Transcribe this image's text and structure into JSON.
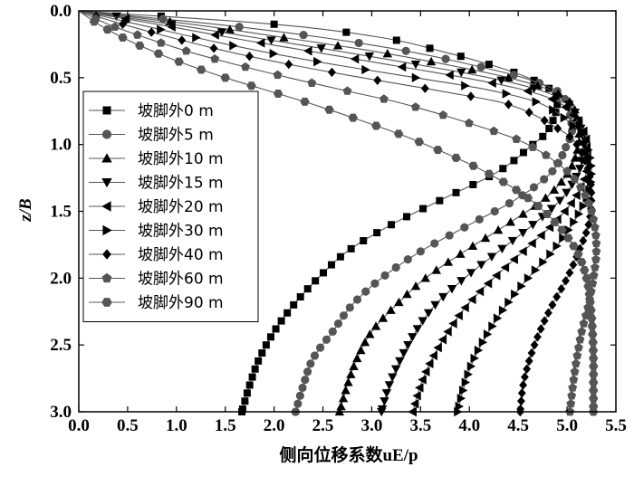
{
  "chart_data": {
    "type": "line",
    "xlabel": "侧向位移系数uE/p",
    "ylabel": "z/B",
    "xlim": [
      0.0,
      5.5
    ],
    "ylim": [
      0.0,
      3.0
    ],
    "y_inverted": true,
    "x_ticks": [
      "0.0",
      "0.5",
      "1.0",
      "1.5",
      "2.0",
      "2.5",
      "3.0",
      "3.5",
      "4.0",
      "4.5",
      "5.0",
      "5.5"
    ],
    "y_ticks": [
      "0.0",
      "0.5",
      "1.0",
      "1.5",
      "2.0",
      "2.5",
      "3.0"
    ],
    "grid": false,
    "legend_position": "left",
    "series": [
      {
        "name": "坡脚外0 m",
        "marker": "square",
        "profile": [
          [
            0.0,
            0.0
          ],
          [
            0.1,
            2.0
          ],
          [
            0.2,
            3.1
          ],
          [
            0.3,
            3.7
          ],
          [
            0.4,
            4.2
          ],
          [
            0.5,
            4.6
          ],
          [
            0.6,
            4.85
          ],
          [
            0.7,
            4.9
          ],
          [
            0.9,
            4.8
          ],
          [
            1.0,
            4.65
          ],
          [
            1.2,
            4.3
          ],
          [
            1.4,
            3.75
          ],
          [
            1.6,
            3.2
          ],
          [
            1.8,
            2.75
          ],
          [
            2.0,
            2.45
          ],
          [
            2.2,
            2.2
          ],
          [
            2.4,
            2.0
          ],
          [
            2.6,
            1.85
          ],
          [
            2.8,
            1.75
          ],
          [
            3.0,
            1.67
          ]
        ]
      },
      {
        "name": "坡脚外5 m",
        "marker": "circle",
        "profile": [
          [
            0.0,
            0.0
          ],
          [
            0.1,
            1.4
          ],
          [
            0.2,
            2.5
          ],
          [
            0.3,
            3.35
          ],
          [
            0.4,
            4.0
          ],
          [
            0.5,
            4.55
          ],
          [
            0.6,
            4.9
          ],
          [
            0.7,
            5.0
          ],
          [
            0.9,
            5.05
          ],
          [
            1.0,
            5.0
          ],
          [
            1.2,
            4.85
          ],
          [
            1.4,
            4.5
          ],
          [
            1.6,
            4.0
          ],
          [
            1.8,
            3.5
          ],
          [
            2.0,
            3.1
          ],
          [
            2.2,
            2.8
          ],
          [
            2.4,
            2.6
          ],
          [
            2.6,
            2.4
          ],
          [
            2.8,
            2.3
          ],
          [
            3.0,
            2.22
          ]
        ]
      },
      {
        "name": "坡脚外10 m",
        "marker": "triangle-up",
        "profile": [
          [
            0.0,
            0.0
          ],
          [
            0.1,
            1.15
          ],
          [
            0.2,
            2.1
          ],
          [
            0.3,
            3.0
          ],
          [
            0.4,
            3.75
          ],
          [
            0.5,
            4.4
          ],
          [
            0.6,
            4.85
          ],
          [
            0.7,
            5.05
          ],
          [
            0.9,
            5.12
          ],
          [
            1.0,
            5.12
          ],
          [
            1.2,
            5.02
          ],
          [
            1.4,
            4.78
          ],
          [
            1.6,
            4.38
          ],
          [
            1.8,
            3.95
          ],
          [
            2.0,
            3.55
          ],
          [
            2.2,
            3.25
          ],
          [
            2.4,
            3.0
          ],
          [
            2.6,
            2.85
          ],
          [
            2.8,
            2.75
          ],
          [
            3.0,
            2.67
          ]
        ]
      },
      {
        "name": "坡脚外15 m",
        "marker": "triangle-down",
        "profile": [
          [
            0.0,
            0.0
          ],
          [
            0.1,
            0.95
          ],
          [
            0.2,
            1.8
          ],
          [
            0.3,
            2.65
          ],
          [
            0.4,
            3.45
          ],
          [
            0.5,
            4.2
          ],
          [
            0.6,
            4.75
          ],
          [
            0.7,
            5.02
          ],
          [
            0.9,
            5.15
          ],
          [
            1.0,
            5.17
          ],
          [
            1.2,
            5.12
          ],
          [
            1.4,
            4.95
          ],
          [
            1.6,
            4.65
          ],
          [
            1.8,
            4.3
          ],
          [
            2.0,
            3.95
          ],
          [
            2.2,
            3.65
          ],
          [
            2.4,
            3.45
          ],
          [
            2.6,
            3.3
          ],
          [
            2.8,
            3.18
          ],
          [
            3.0,
            3.1
          ]
        ]
      },
      {
        "name": "坡脚外20 m",
        "marker": "triangle-left",
        "profile": [
          [
            0.0,
            0.0
          ],
          [
            0.1,
            0.8
          ],
          [
            0.2,
            1.55
          ],
          [
            0.3,
            2.35
          ],
          [
            0.4,
            3.15
          ],
          [
            0.5,
            3.95
          ],
          [
            0.6,
            4.6
          ],
          [
            0.7,
            4.95
          ],
          [
            0.9,
            5.17
          ],
          [
            1.0,
            5.2
          ],
          [
            1.2,
            5.2
          ],
          [
            1.4,
            5.08
          ],
          [
            1.6,
            4.85
          ],
          [
            1.8,
            4.55
          ],
          [
            2.0,
            4.25
          ],
          [
            2.2,
            3.98
          ],
          [
            2.4,
            3.78
          ],
          [
            2.6,
            3.62
          ],
          [
            2.8,
            3.5
          ],
          [
            3.0,
            3.42
          ]
        ]
      },
      {
        "name": "坡脚外30 m",
        "marker": "triangle-right",
        "profile": [
          [
            0.0,
            0.0
          ],
          [
            0.1,
            0.6
          ],
          [
            0.2,
            1.2
          ],
          [
            0.3,
            1.85
          ],
          [
            0.4,
            2.6
          ],
          [
            0.5,
            3.45
          ],
          [
            0.6,
            4.25
          ],
          [
            0.7,
            4.75
          ],
          [
            0.9,
            5.12
          ],
          [
            1.0,
            5.2
          ],
          [
            1.2,
            5.25
          ],
          [
            1.4,
            5.2
          ],
          [
            1.6,
            5.05
          ],
          [
            1.8,
            4.85
          ],
          [
            2.0,
            4.6
          ],
          [
            2.2,
            4.38
          ],
          [
            2.4,
            4.2
          ],
          [
            2.6,
            4.05
          ],
          [
            2.8,
            3.95
          ],
          [
            3.0,
            3.88
          ]
        ]
      },
      {
        "name": "坡脚外40 m",
        "marker": "diamond",
        "profile": [
          [
            0.0,
            0.0
          ],
          [
            0.1,
            0.45
          ],
          [
            0.2,
            0.95
          ],
          [
            0.3,
            1.5
          ],
          [
            0.4,
            2.15
          ],
          [
            0.5,
            2.9
          ],
          [
            0.6,
            3.7
          ],
          [
            0.7,
            4.4
          ],
          [
            0.9,
            4.95
          ],
          [
            1.0,
            5.1
          ],
          [
            1.2,
            5.22
          ],
          [
            1.4,
            5.25
          ],
          [
            1.6,
            5.22
          ],
          [
            1.8,
            5.12
          ],
          [
            2.0,
            5.0
          ],
          [
            2.2,
            4.85
          ],
          [
            2.4,
            4.72
          ],
          [
            2.6,
            4.62
          ],
          [
            2.8,
            4.55
          ],
          [
            3.0,
            4.52
          ]
        ]
      },
      {
        "name": "坡脚外60 m",
        "marker": "pentagon",
        "profile": [
          [
            0.0,
            0.0
          ],
          [
            0.1,
            0.3
          ],
          [
            0.2,
            0.68
          ],
          [
            0.3,
            1.1
          ],
          [
            0.4,
            1.6
          ],
          [
            0.5,
            2.15
          ],
          [
            0.6,
            2.75
          ],
          [
            0.7,
            3.35
          ],
          [
            0.9,
            4.25
          ],
          [
            1.0,
            4.6
          ],
          [
            1.2,
            5.0
          ],
          [
            1.4,
            5.2
          ],
          [
            1.6,
            5.28
          ],
          [
            1.8,
            5.3
          ],
          [
            2.0,
            5.27
          ],
          [
            2.2,
            5.22
          ],
          [
            2.4,
            5.15
          ],
          [
            2.6,
            5.1
          ],
          [
            2.8,
            5.06
          ],
          [
            3.0,
            5.03
          ]
        ]
      },
      {
        "name": "坡脚外90 m",
        "marker": "hexagon",
        "profile": [
          [
            0.0,
            0.0
          ],
          [
            0.1,
            0.2
          ],
          [
            0.2,
            0.45
          ],
          [
            0.3,
            0.75
          ],
          [
            0.4,
            1.1
          ],
          [
            0.5,
            1.5
          ],
          [
            0.6,
            1.95
          ],
          [
            0.7,
            2.4
          ],
          [
            0.9,
            3.2
          ],
          [
            1.0,
            3.55
          ],
          [
            1.2,
            4.15
          ],
          [
            1.4,
            4.6
          ],
          [
            1.6,
            4.9
          ],
          [
            1.8,
            5.1
          ],
          [
            2.0,
            5.2
          ],
          [
            2.2,
            5.24
          ],
          [
            2.4,
            5.26
          ],
          [
            2.6,
            5.27
          ],
          [
            2.8,
            5.27
          ],
          [
            3.0,
            5.27
          ]
        ]
      }
    ]
  }
}
